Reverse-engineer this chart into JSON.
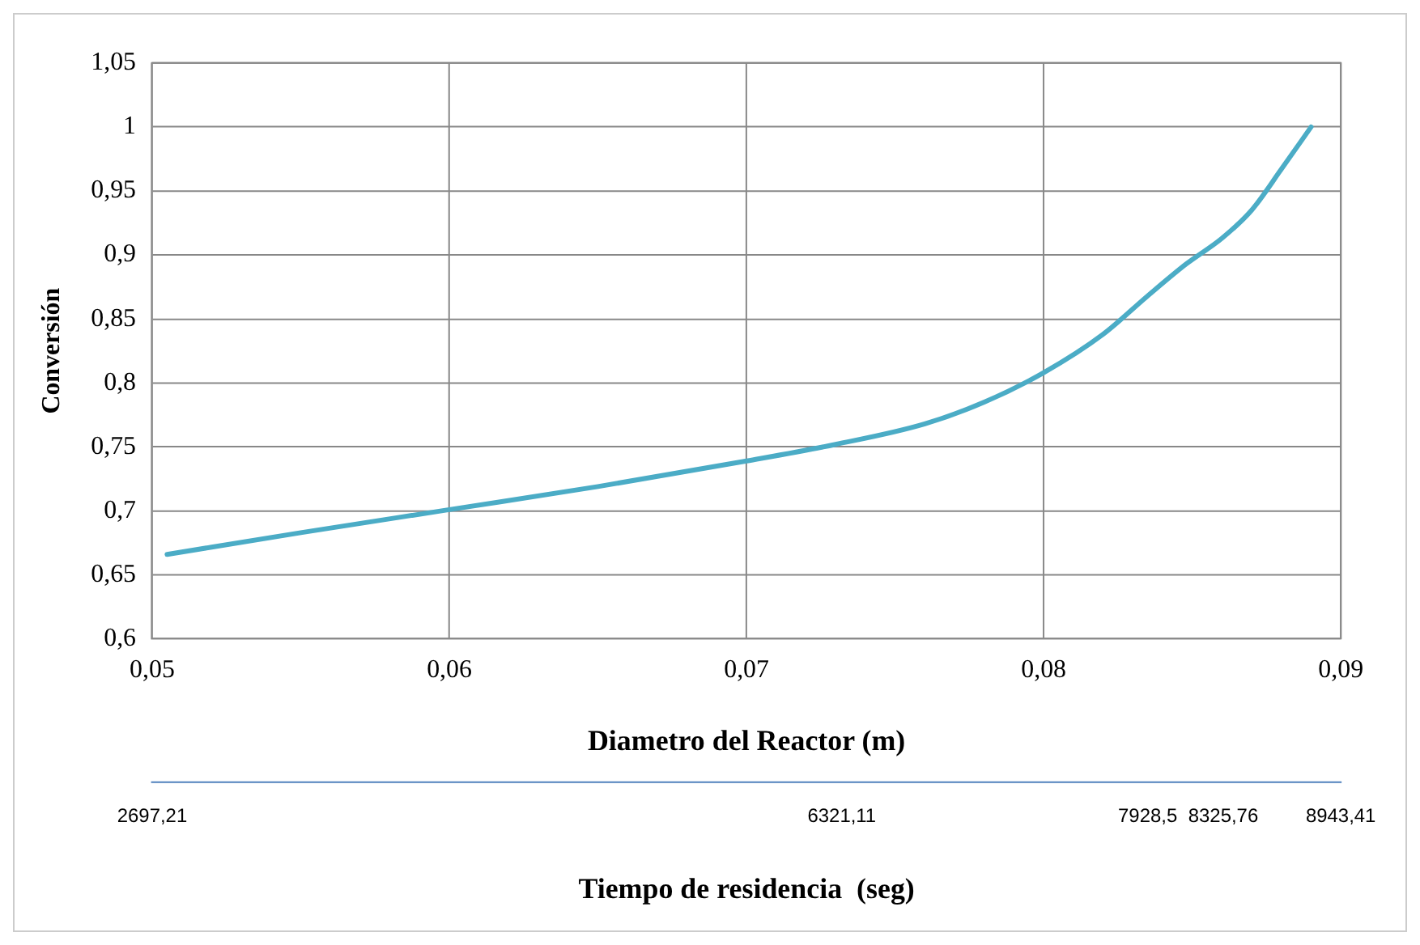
{
  "chart_data": {
    "type": "line",
    "xlabel": "Diametro del Reactor (m)",
    "ylabel": "Conversión",
    "x2label": "Tiempo de residencia  (seg)",
    "x": [
      0.0505,
      0.055,
      0.06,
      0.065,
      0.07,
      0.073,
      0.076,
      0.078,
      0.08,
      0.082,
      0.0835,
      0.0848,
      0.086,
      0.087,
      0.088,
      0.089
    ],
    "series": [
      {
        "color": "#4bacc6",
        "values": [
          0.666,
          0.683,
          0.701,
          0.719,
          0.739,
          0.752,
          0.768,
          0.785,
          0.808,
          0.838,
          0.868,
          0.893,
          0.913,
          0.935,
          0.967,
          1.0
        ]
      }
    ],
    "xlim": [
      0.05,
      0.09
    ],
    "xticks": [
      {
        "value": 0.05,
        "label": "0,05"
      },
      {
        "value": 0.06,
        "label": "0,06"
      },
      {
        "value": 0.07,
        "label": "0,07"
      },
      {
        "value": 0.08,
        "label": "0,08"
      },
      {
        "value": 0.09,
        "label": "0,09"
      }
    ],
    "x2lim": [
      2697.21,
      8943.41
    ],
    "x2ticks": [
      {
        "value": 2697.21,
        "label": "2697,21"
      },
      {
        "value": 6321.11,
        "label": "6321,11"
      },
      {
        "value": 7928.5,
        "label": "7928,5"
      },
      {
        "value": 8325.76,
        "label": "8325,76"
      },
      {
        "value": 8943.41,
        "label": "8943,41"
      }
    ],
    "ylim": [
      0.6,
      1.05
    ],
    "yticks": [
      {
        "value": 0.6,
        "label": "0,6"
      },
      {
        "value": 0.65,
        "label": "0,65"
      },
      {
        "value": 0.7,
        "label": "0,7"
      },
      {
        "value": 0.75,
        "label": "0,75"
      },
      {
        "value": 0.8,
        "label": "0,8"
      },
      {
        "value": 0.85,
        "label": "0,85"
      },
      {
        "value": 0.9,
        "label": "0,9"
      },
      {
        "value": 0.95,
        "label": "0,95"
      },
      {
        "value": 1,
        "label": "1"
      },
      {
        "value": 1.05,
        "label": "1,05"
      }
    ],
    "grid": true,
    "marker": "none",
    "line_style": "solid"
  }
}
